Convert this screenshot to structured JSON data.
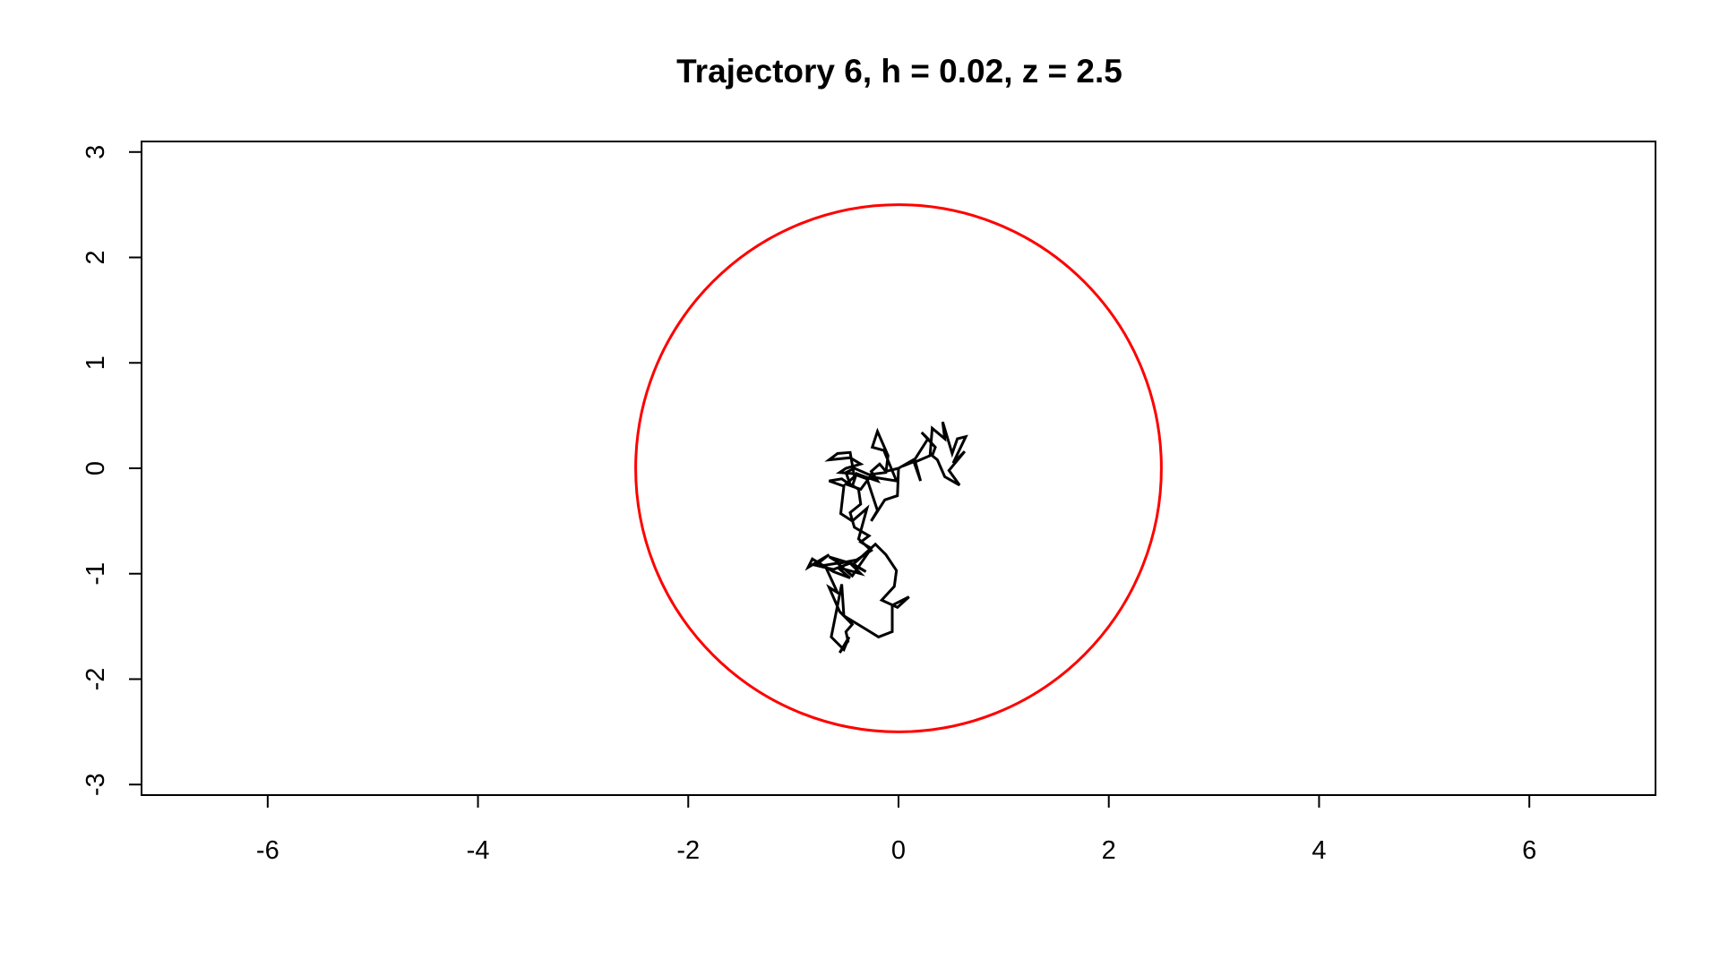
{
  "chart_data": {
    "type": "line",
    "title": "Trajectory 6, h = 0.02, z = 2.5",
    "xlabel": "",
    "ylabel": "",
    "xlim": [
      -7.2,
      7.2
    ],
    "ylim": [
      -3.1,
      3.1
    ],
    "x_ticks": [
      -6,
      -4,
      -2,
      0,
      2,
      4,
      6
    ],
    "y_ticks": [
      -3,
      -2,
      -1,
      0,
      1,
      2,
      3
    ],
    "grid": false,
    "legend": "none",
    "colors": {
      "trajectory": "#000000",
      "circle": "#ff0000",
      "axes": "#000000"
    },
    "circle": {
      "center": [
        0,
        0
      ],
      "radius": 2.5
    },
    "series": [
      {
        "x": [
          0.0,
          -0.12,
          -0.18,
          -0.26,
          -0.2,
          -0.32,
          -0.4,
          -0.44,
          -0.54,
          -0.66,
          -0.52,
          -0.55,
          -0.44,
          -0.3,
          -0.38,
          -0.26,
          -0.4,
          -0.56,
          -0.66,
          -0.46,
          -0.62,
          -0.79,
          -0.66,
          -0.86,
          -0.82,
          -0.62,
          -0.46,
          -0.58,
          -0.36,
          -0.46,
          -0.31,
          -0.43,
          -0.22,
          -0.12,
          -0.02,
          -0.04,
          -0.16,
          -0.01,
          0.1,
          -0.06,
          -0.06,
          -0.19,
          -0.32,
          -0.52,
          -0.54,
          -0.64,
          -0.52,
          -0.47,
          -0.56,
          -0.48,
          -0.5,
          -0.44,
          -0.56,
          -0.66,
          -0.58,
          -0.7,
          -0.58,
          -0.44,
          -0.26,
          -0.36,
          -0.28,
          -0.42,
          -0.46,
          -0.36,
          -0.38,
          -0.46,
          -0.5,
          -0.42,
          -0.28,
          -0.12,
          -0.1,
          -0.2,
          -0.25,
          -0.14,
          -0.02,
          -0.27,
          -0.36,
          -0.5,
          -0.42,
          -0.46,
          -0.58,
          -0.66,
          -0.46,
          -0.36,
          -0.5,
          -0.56,
          -0.44,
          -0.3,
          -0.2,
          -0.26,
          -0.13,
          -0.01,
          0.0
        ],
        "y": [
          0.0,
          -0.03,
          0.04,
          -0.03,
          -0.12,
          -0.08,
          -0.05,
          -0.17,
          -0.1,
          -0.12,
          -0.17,
          -0.43,
          -0.5,
          -0.38,
          -0.67,
          -0.78,
          -0.87,
          -0.9,
          -0.84,
          -0.9,
          -0.96,
          -0.92,
          -0.82,
          -0.94,
          -0.86,
          -0.98,
          -1.04,
          -0.94,
          -1.0,
          -0.9,
          -0.98,
          -0.91,
          -0.72,
          -0.82,
          -0.97,
          -1.12,
          -1.25,
          -1.32,
          -1.22,
          -1.3,
          -1.55,
          -1.6,
          -1.52,
          -1.4,
          -1.1,
          -1.6,
          -1.72,
          -1.6,
          -1.75,
          -1.64,
          -1.55,
          -1.48,
          -1.36,
          -1.13,
          -1.18,
          -0.92,
          -0.9,
          -1.02,
          -0.76,
          -0.7,
          -0.64,
          -0.56,
          -0.42,
          -0.34,
          -0.2,
          -0.15,
          -0.04,
          0.0,
          -0.06,
          -0.04,
          0.12,
          0.35,
          0.2,
          0.17,
          -0.12,
          -0.08,
          -0.2,
          -0.15,
          -0.08,
          0.15,
          0.14,
          0.08,
          0.1,
          0.04,
          0.0,
          -0.04,
          -0.05,
          -0.1,
          -0.4,
          -0.5,
          -0.3,
          -0.26,
          0.0
        ]
      },
      {
        "x": [
          0.0,
          0.14,
          0.21,
          0.16,
          0.3,
          0.32,
          0.44,
          0.42,
          0.51,
          0.56,
          0.64,
          0.52,
          0.63,
          0.48,
          0.58,
          0.44,
          0.37,
          0.32,
          0.35,
          0.22,
          0.28,
          0.14,
          0.04
        ],
        "y": [
          0.0,
          0.08,
          -0.12,
          0.06,
          0.12,
          0.38,
          0.28,
          0.44,
          0.14,
          0.28,
          0.3,
          0.05,
          0.16,
          -0.02,
          -0.16,
          -0.08,
          0.08,
          0.12,
          0.2,
          0.34,
          0.28,
          0.06,
          0.02
        ]
      }
    ]
  }
}
